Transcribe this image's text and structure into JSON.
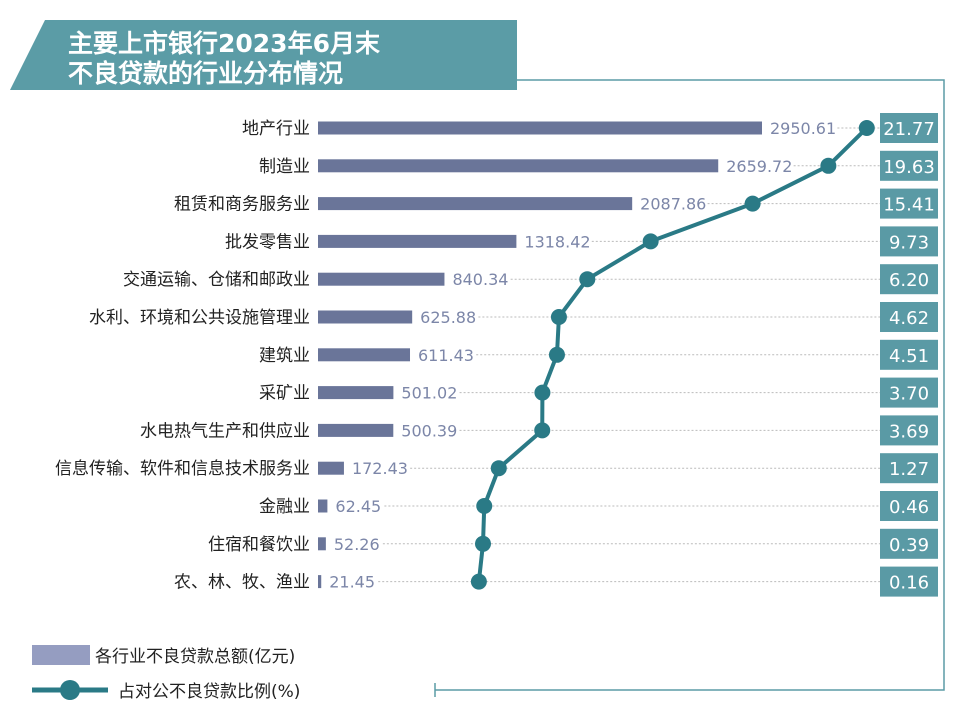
{
  "chart_data": {
    "type": "bar+line",
    "title_lines": [
      "主要上市银行2023年6月末",
      "不良贷款的行业分布情况"
    ],
    "categories": [
      "地产行业",
      "制造业",
      "租赁和商务服务业",
      "批发零售业",
      "交通运输、仓储和邮政业",
      "水利、环境和公共设施管理业",
      "建筑业",
      "采矿业",
      "水电热气生产和供应业",
      "信息传输、软件和信息技术服务业",
      "金融业",
      "住宿和餐饮业",
      "农、林、牧、渔业"
    ],
    "series": [
      {
        "name": "各行业不良贷款总额(亿元)",
        "type": "bar",
        "values": [
          2950.61,
          2659.72,
          2087.86,
          1318.42,
          840.34,
          625.88,
          611.43,
          501.02,
          500.39,
          172.43,
          62.45,
          52.26,
          21.45
        ],
        "labels": [
          "2950.61",
          "2659.72",
          "2087.86",
          "1318.42",
          "840.34",
          "625.88",
          "611.43",
          "501.02",
          "500.39",
          "172.43",
          "62.45",
          "52.26",
          "21.45"
        ]
      },
      {
        "name": "占对公不良贷款比例(%)",
        "type": "line",
        "values": [
          21.77,
          19.63,
          15.41,
          9.73,
          6.2,
          4.62,
          4.51,
          3.7,
          3.69,
          1.27,
          0.46,
          0.39,
          0.16
        ],
        "labels": [
          "21.77",
          "19.63",
          "15.41",
          "9.73",
          "6.20",
          "4.62",
          "4.51",
          "3.70",
          "3.69",
          "1.27",
          "0.46",
          "0.39",
          "0.16"
        ]
      }
    ],
    "orientation": "horizontal",
    "legend_placement": "bottom-left",
    "grid": false
  },
  "colors": {
    "bar": "#6a7599",
    "legend_bar": "#959dc1",
    "line": "#2a7a86",
    "banner": "#5b9ca6",
    "pct_box": "#5a9aa5",
    "value_text": "#7c86a8"
  }
}
